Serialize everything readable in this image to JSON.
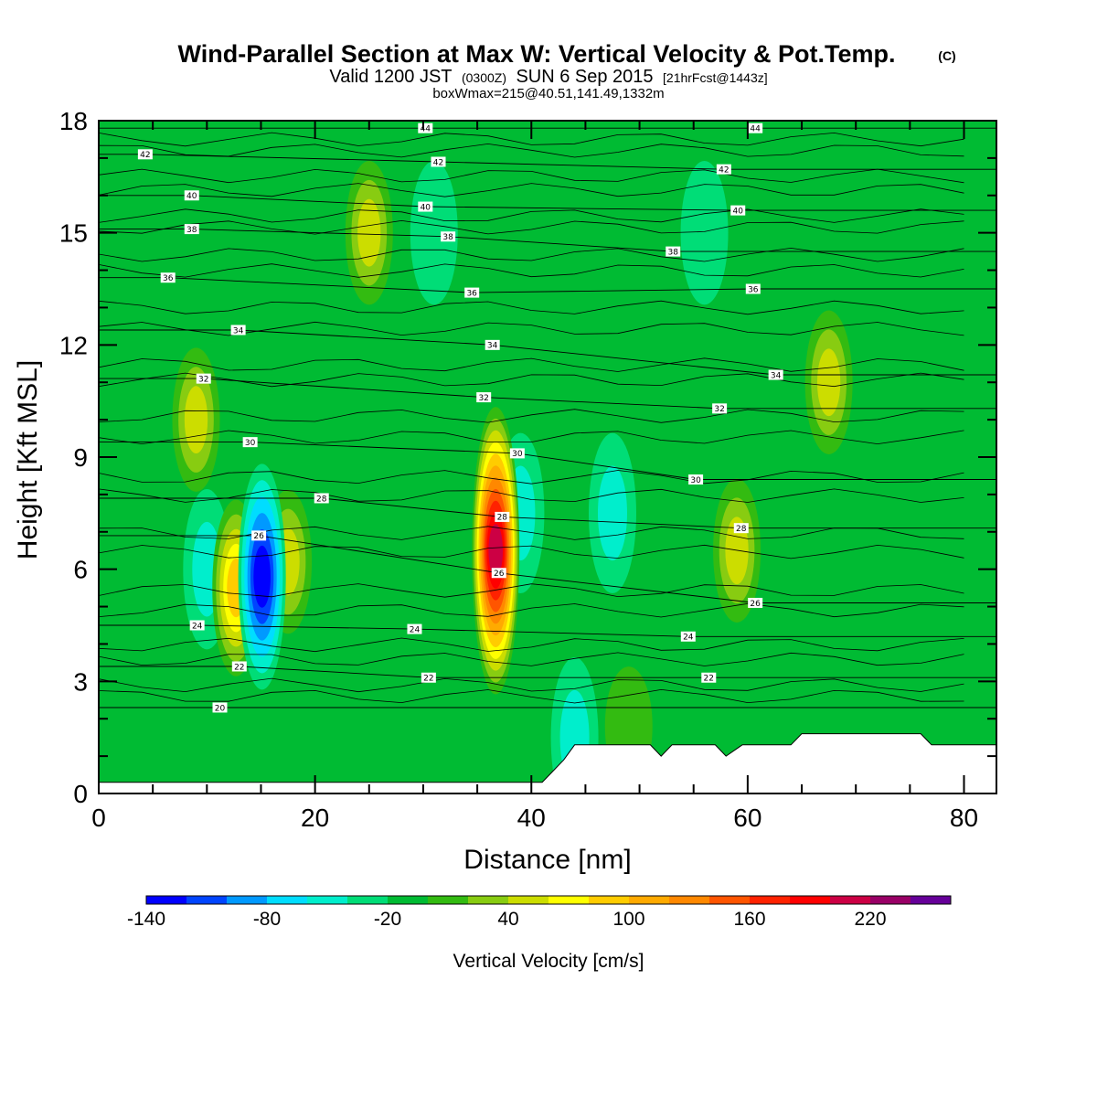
{
  "header": {
    "title": "Wind-Parallel Section at Max W: Vertical Velocity & Pot.Temp.",
    "copyright_mark": "(C)",
    "valid_prefix": "Valid 1200 JST",
    "valid_utc": "(0300Z)",
    "valid_date": "SUN 6 Sep 2015",
    "forecast_info": "[21hrFcst@1443z]",
    "box_info": "boxWmax=215@40.51,141.49,1332m"
  },
  "chart_data": {
    "type": "heatmap",
    "xlabel": "Distance [nm]",
    "ylabel": "Height [Kft MSL]",
    "xlim": [
      0,
      83
    ],
    "ylim": [
      0,
      18
    ],
    "x_ticks": [
      "0",
      "20",
      "40",
      "60",
      "80"
    ],
    "y_ticks": [
      "0",
      "3",
      "6",
      "9",
      "12",
      "15",
      "18"
    ],
    "background_value": -10,
    "w_features": [
      {
        "x": 15.1,
        "y": 5.8,
        "value": -140
      },
      {
        "x": 12.7,
        "y": 5.5,
        "value": 80
      },
      {
        "x": 17.5,
        "y": 6.2,
        "value": 40
      },
      {
        "x": 10.0,
        "y": 6.0,
        "value": -60
      },
      {
        "x": 9.0,
        "y": 10.0,
        "value": 40
      },
      {
        "x": 36.7,
        "y": 6.5,
        "value": 215
      },
      {
        "x": 39.0,
        "y": 7.5,
        "value": -60
      },
      {
        "x": 47.5,
        "y": 7.5,
        "value": -60
      },
      {
        "x": 44.0,
        "y": 1.5,
        "value": -60
      },
      {
        "x": 31.0,
        "y": 15.0,
        "value": -40
      },
      {
        "x": 56.0,
        "y": 15.0,
        "value": -40
      },
      {
        "x": 67.5,
        "y": 11.0,
        "value": 40
      },
      {
        "x": 59.0,
        "y": 6.5,
        "value": 40
      },
      {
        "x": 25.0,
        "y": 15.0,
        "value": 40
      },
      {
        "x": 49.0,
        "y": 1.8,
        "value": 10
      }
    ],
    "theta_labels": [
      {
        "x": 4.3,
        "y": 17.1,
        "label": "42"
      },
      {
        "x": 30.2,
        "y": 17.8,
        "label": "44"
      },
      {
        "x": 60.7,
        "y": 17.8,
        "label": "44"
      },
      {
        "x": 8.6,
        "y": 16.0,
        "label": "40"
      },
      {
        "x": 31.4,
        "y": 16.9,
        "label": "42"
      },
      {
        "x": 57.8,
        "y": 16.7,
        "label": "42"
      },
      {
        "x": 8.6,
        "y": 15.1,
        "label": "38"
      },
      {
        "x": 30.2,
        "y": 15.7,
        "label": "40"
      },
      {
        "x": 59.1,
        "y": 15.6,
        "label": "40"
      },
      {
        "x": 6.4,
        "y": 13.8,
        "label": "36"
      },
      {
        "x": 32.3,
        "y": 14.9,
        "label": "38"
      },
      {
        "x": 53.1,
        "y": 14.5,
        "label": "38"
      },
      {
        "x": 34.5,
        "y": 13.4,
        "label": "36"
      },
      {
        "x": 60.5,
        "y": 13.5,
        "label": "36"
      },
      {
        "x": 12.9,
        "y": 12.4,
        "label": "34"
      },
      {
        "x": 36.4,
        "y": 12.0,
        "label": "34"
      },
      {
        "x": 62.6,
        "y": 11.2,
        "label": "34"
      },
      {
        "x": 9.7,
        "y": 11.1,
        "label": "32"
      },
      {
        "x": 35.6,
        "y": 10.6,
        "label": "32"
      },
      {
        "x": 57.4,
        "y": 10.3,
        "label": "32"
      },
      {
        "x": 14.0,
        "y": 9.4,
        "label": "30"
      },
      {
        "x": 38.7,
        "y": 9.1,
        "label": "30"
      },
      {
        "x": 55.2,
        "y": 8.4,
        "label": "30"
      },
      {
        "x": 20.6,
        "y": 7.9,
        "label": "28"
      },
      {
        "x": 37.3,
        "y": 7.4,
        "label": "28"
      },
      {
        "x": 59.4,
        "y": 7.1,
        "label": "28"
      },
      {
        "x": 14.8,
        "y": 6.9,
        "label": "26"
      },
      {
        "x": 37.0,
        "y": 5.9,
        "label": "26"
      },
      {
        "x": 60.7,
        "y": 5.1,
        "label": "26"
      },
      {
        "x": 9.1,
        "y": 4.5,
        "label": "24"
      },
      {
        "x": 29.2,
        "y": 4.4,
        "label": "24"
      },
      {
        "x": 54.5,
        "y": 4.2,
        "label": "24"
      },
      {
        "x": 13.0,
        "y": 3.4,
        "label": "22"
      },
      {
        "x": 30.5,
        "y": 3.1,
        "label": "22"
      },
      {
        "x": 56.4,
        "y": 3.1,
        "label": "22"
      },
      {
        "x": 11.2,
        "y": 2.3,
        "label": "20"
      }
    ],
    "terrain": [
      [
        0,
        0.3
      ],
      [
        41,
        0.3
      ],
      [
        42,
        0.6
      ],
      [
        43,
        0.9
      ],
      [
        44,
        1.3
      ],
      [
        51,
        1.3
      ],
      [
        52,
        1.0
      ],
      [
        53,
        1.3
      ],
      [
        57,
        1.3
      ],
      [
        58,
        1.0
      ],
      [
        59.5,
        1.3
      ],
      [
        64,
        1.3
      ],
      [
        65,
        1.6
      ],
      [
        76,
        1.6
      ],
      [
        77,
        1.3
      ],
      [
        83,
        1.3
      ]
    ]
  },
  "colorbar": {
    "label": "Vertical Velocity [cm/s]",
    "min": -140,
    "step": 20,
    "colors": [
      "#0000ff",
      "#0044ff",
      "#0099ff",
      "#00ddff",
      "#00eecc",
      "#00dd77",
      "#00bb33",
      "#33bb11",
      "#88cc11",
      "#ccdd00",
      "#ffff00",
      "#ffcc00",
      "#ffaa00",
      "#ff8800",
      "#ff5500",
      "#ff2200",
      "#ff0000",
      "#cc0044",
      "#990066",
      "#660099"
    ],
    "tick_labels": [
      {
        "value": -140,
        "text": "-140"
      },
      {
        "value": -80,
        "text": "-80"
      },
      {
        "value": -20,
        "text": "-20"
      },
      {
        "value": 40,
        "text": "40"
      },
      {
        "value": 100,
        "text": "100"
      },
      {
        "value": 160,
        "text": "160"
      },
      {
        "value": 220,
        "text": "220"
      }
    ]
  }
}
